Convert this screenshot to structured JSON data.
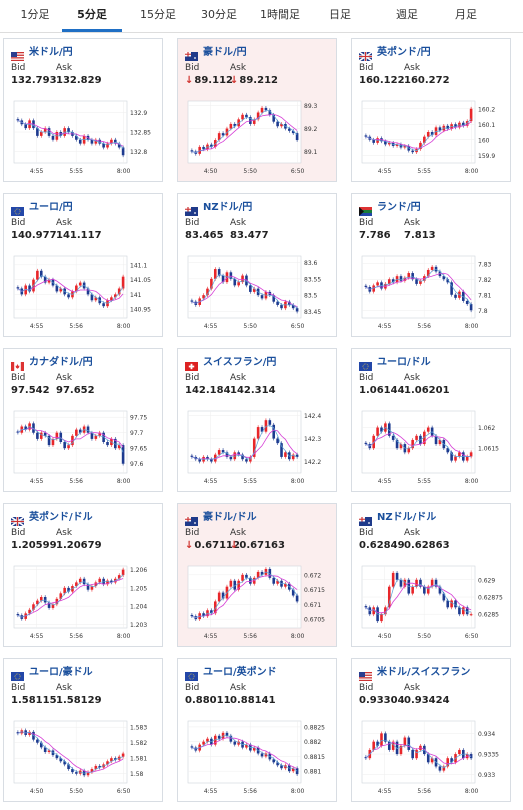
{
  "tabs": [
    {
      "label": "1分足",
      "active": false
    },
    {
      "label": "5分足",
      "active": true
    },
    {
      "label": "15分足",
      "active": false
    },
    {
      "label": "30分足",
      "active": false
    },
    {
      "label": "1時間足",
      "active": false
    },
    {
      "label": "日足",
      "active": false
    },
    {
      "label": "週足",
      "active": false
    },
    {
      "label": "月足",
      "active": false
    }
  ],
  "labels": {
    "bid": "Bid",
    "ask": "Ask"
  },
  "colors": {
    "up": "#e8262a",
    "down": "#1d3a8f",
    "ma1": "#d63fd6",
    "ma2": "#5a9fd6",
    "accent": "#1a4f9c"
  },
  "cards": [
    {
      "pair": "米ドル/円",
      "flag": "flag-us",
      "bid": "132.793",
      "ask": "132.829",
      "down": false,
      "highlight": false,
      "chart_data": {
        "type": "candlestick",
        "x_ticks": [
          "4:55",
          "5:55",
          "8:00"
        ],
        "y_ticks": [
          "132.9",
          "132.85",
          "132.8"
        ],
        "ylim": [
          132.77,
          132.93
        ],
        "closes": [
          132.88,
          132.87,
          132.86,
          132.88,
          132.86,
          132.84,
          132.85,
          132.86,
          132.84,
          132.83,
          132.85,
          132.84,
          132.86,
          132.85,
          132.84,
          132.83,
          132.82,
          132.84,
          132.83,
          132.82,
          132.83,
          132.82,
          132.81,
          132.82,
          132.83,
          132.82,
          132.81,
          132.79
        ]
      }
    },
    {
      "pair": "豪ドル/円",
      "flag": "flag-au",
      "bid": "89.112",
      "ask": "89.212",
      "down": true,
      "highlight": true,
      "chart_data": {
        "type": "candlestick",
        "x_ticks": [
          "4:50",
          "5:50",
          "6:50"
        ],
        "y_ticks": [
          "89.3",
          "89.2",
          "89.1"
        ],
        "ylim": [
          89.05,
          89.32
        ],
        "closes": [
          89.1,
          89.09,
          89.12,
          89.11,
          89.13,
          89.12,
          89.15,
          89.18,
          89.17,
          89.2,
          89.22,
          89.21,
          89.24,
          89.26,
          89.25,
          89.22,
          89.24,
          89.27,
          89.29,
          89.28,
          89.26,
          89.23,
          89.21,
          89.22,
          89.2,
          89.19,
          89.18,
          89.15
        ]
      }
    },
    {
      "pair": "英ポンド/円",
      "flag": "flag-uk",
      "bid": "160.122",
      "ask": "160.272",
      "down": false,
      "highlight": false,
      "chart_data": {
        "type": "candlestick",
        "x_ticks": [
          "4:55",
          "5:55",
          "8:00"
        ],
        "y_ticks": [
          "160.2",
          "160.1",
          "160",
          "159.9"
        ],
        "ylim": [
          159.85,
          160.25
        ],
        "closes": [
          160.02,
          160.0,
          159.98,
          160.01,
          159.99,
          159.97,
          159.98,
          159.96,
          159.97,
          159.95,
          159.96,
          159.93,
          159.92,
          159.94,
          159.98,
          160.02,
          160.05,
          160.03,
          160.08,
          160.06,
          160.09,
          160.07,
          160.1,
          160.08,
          160.11,
          160.09,
          160.12,
          160.2
        ]
      }
    },
    {
      "pair": "ユーロ/円",
      "flag": "flag-eu",
      "bid": "140.977",
      "ask": "141.117",
      "down": false,
      "highlight": false,
      "chart_data": {
        "type": "candlestick",
        "x_ticks": [
          "4:55",
          "5:56",
          "8:00"
        ],
        "y_ticks": [
          "141.1",
          "141.05",
          "141",
          "140.95"
        ],
        "ylim": [
          140.92,
          141.13
        ],
        "closes": [
          141.02,
          141.0,
          141.03,
          141.01,
          141.05,
          141.08,
          141.06,
          141.04,
          141.05,
          141.03,
          141.01,
          141.02,
          141.0,
          140.99,
          141.01,
          141.03,
          141.04,
          141.02,
          141.0,
          140.98,
          140.99,
          140.97,
          140.96,
          140.98,
          140.99,
          141.0,
          141.02,
          141.06
        ]
      }
    },
    {
      "pair": "NZドル/円",
      "flag": "flag-nz",
      "bid": "83.465",
      "ask": "83.477",
      "down": false,
      "highlight": false,
      "chart_data": {
        "type": "candlestick",
        "x_ticks": [
          "4:55",
          "5:50",
          "6:50"
        ],
        "y_ticks": [
          "83.6",
          "83.55",
          "83.5",
          "83.45"
        ],
        "ylim": [
          83.43,
          83.62
        ],
        "closes": [
          83.48,
          83.47,
          83.49,
          83.5,
          83.52,
          83.55,
          83.58,
          83.56,
          83.54,
          83.57,
          83.55,
          83.53,
          83.54,
          83.56,
          83.53,
          83.51,
          83.52,
          83.5,
          83.49,
          83.51,
          83.5,
          83.48,
          83.47,
          83.46,
          83.48,
          83.47,
          83.46,
          83.45
        ]
      }
    },
    {
      "pair": "ランド/円",
      "flag": "flag-za",
      "bid": "7.786",
      "ask": "7.813",
      "down": false,
      "highlight": false,
      "chart_data": {
        "type": "candlestick",
        "x_ticks": [
          "4:55",
          "5:56",
          "8:00"
        ],
        "y_ticks": [
          "7.83",
          "7.82",
          "7.81",
          "7.8"
        ],
        "ylim": [
          7.795,
          7.835
        ],
        "closes": [
          7.815,
          7.812,
          7.816,
          7.818,
          7.814,
          7.817,
          7.82,
          7.818,
          7.822,
          7.819,
          7.821,
          7.824,
          7.82,
          7.817,
          7.819,
          7.822,
          7.826,
          7.828,
          7.825,
          7.822,
          7.82,
          7.818,
          7.81,
          7.808,
          7.812,
          7.806,
          7.804,
          7.8
        ]
      }
    },
    {
      "pair": "カナダドル/円",
      "flag": "flag-ca",
      "bid": "97.542",
      "ask": "97.652",
      "down": false,
      "highlight": false,
      "chart_data": {
        "type": "candlestick",
        "x_ticks": [
          "4:55",
          "5:56",
          "8:00"
        ],
        "y_ticks": [
          "97.75",
          "97.7",
          "97.65",
          "97.6"
        ],
        "ylim": [
          97.57,
          97.77
        ],
        "closes": [
          97.7,
          97.72,
          97.71,
          97.73,
          97.7,
          97.68,
          97.7,
          97.69,
          97.66,
          97.68,
          97.7,
          97.67,
          97.65,
          97.66,
          97.69,
          97.71,
          97.7,
          97.72,
          97.7,
          97.68,
          97.69,
          97.7,
          97.67,
          97.66,
          97.68,
          97.65,
          97.66,
          97.6
        ]
      }
    },
    {
      "pair": "スイスフラン/円",
      "flag": "flag-ch",
      "bid": "142.184",
      "ask": "142.314",
      "down": false,
      "highlight": false,
      "chart_data": {
        "type": "candlestick",
        "x_ticks": [
          "4:55",
          "5:55",
          "8:00"
        ],
        "y_ticks": [
          "142.4",
          "142.3",
          "142.2"
        ],
        "ylim": [
          142.15,
          142.42
        ],
        "closes": [
          142.22,
          142.21,
          142.2,
          142.22,
          142.21,
          142.2,
          142.23,
          142.25,
          142.24,
          142.22,
          142.21,
          142.24,
          142.23,
          142.21,
          142.2,
          142.22,
          142.3,
          142.35,
          142.33,
          142.38,
          142.36,
          142.3,
          142.28,
          142.22,
          142.24,
          142.21,
          142.23,
          142.22
        ]
      }
    },
    {
      "pair": "ユーロ/ドル",
      "flag": "flag-eu",
      "bid": "1.06144",
      "ask": "1.06201",
      "down": false,
      "highlight": false,
      "chart_data": {
        "type": "candlestick",
        "x_ticks": [
          "4:55",
          "5:55",
          "8:00"
        ],
        "y_ticks": [
          "1.062",
          "1.0615"
        ],
        "ylim": [
          1.0609,
          1.0624
        ],
        "closes": [
          1.0616,
          1.0615,
          1.0618,
          1.062,
          1.0619,
          1.0621,
          1.0618,
          1.0617,
          1.0615,
          1.0616,
          1.0614,
          1.0615,
          1.0617,
          1.0618,
          1.0616,
          1.0619,
          1.062,
          1.0618,
          1.0616,
          1.0617,
          1.0615,
          1.0614,
          1.0612,
          1.0613,
          1.0614,
          1.0612,
          1.0613,
          1.0614
        ]
      }
    },
    {
      "pair": "英ポンド/ドル",
      "flag": "flag-uk",
      "bid": "1.20599",
      "ask": "1.20679",
      "down": false,
      "highlight": false,
      "chart_data": {
        "type": "candlestick",
        "x_ticks": [
          "4:55",
          "5:56",
          "8:00"
        ],
        "y_ticks": [
          "1.206",
          "1.205",
          "1.204",
          "1.203"
        ],
        "ylim": [
          1.2028,
          1.2062
        ],
        "closes": [
          1.2035,
          1.2033,
          1.2036,
          1.2038,
          1.2041,
          1.2043,
          1.2045,
          1.2042,
          1.2039,
          1.2041,
          1.2044,
          1.2047,
          1.205,
          1.2048,
          1.2051,
          1.2053,
          1.2055,
          1.2052,
          1.2049,
          1.2051,
          1.2053,
          1.2055,
          1.2052,
          1.2054,
          1.2053,
          1.2055,
          1.2057,
          1.206
        ]
      }
    },
    {
      "pair": "豪ドル/ドル",
      "flag": "flag-au",
      "bid": "0.67112",
      "ask": "0.67163",
      "down": true,
      "highlight": true,
      "chart_data": {
        "type": "candlestick",
        "x_ticks": [
          "4:55",
          "5:56",
          "8:00"
        ],
        "y_ticks": [
          "0.672",
          "0.6715",
          "0.671",
          "0.6705"
        ],
        "ylim": [
          0.6702,
          0.6723
        ],
        "closes": [
          0.6706,
          0.6705,
          0.6707,
          0.6706,
          0.6708,
          0.6707,
          0.6711,
          0.6714,
          0.6712,
          0.6716,
          0.6718,
          0.6715,
          0.6718,
          0.672,
          0.6719,
          0.6717,
          0.6719,
          0.6721,
          0.672,
          0.6722,
          0.6719,
          0.6717,
          0.6718,
          0.6716,
          0.6717,
          0.6715,
          0.6713,
          0.6711
        ]
      }
    },
    {
      "pair": "NZドル/ドル",
      "flag": "flag-nz",
      "bid": "0.62849",
      "ask": "0.62863",
      "down": false,
      "highlight": false,
      "chart_data": {
        "type": "candlestick",
        "x_ticks": [
          "4:50",
          "5:50",
          "6:50"
        ],
        "y_ticks": [
          "0.629",
          "0.62875",
          "0.6285"
        ],
        "ylim": [
          0.6283,
          0.6292
        ],
        "closes": [
          0.6286,
          0.6285,
          0.6286,
          0.6284,
          0.6285,
          0.6286,
          0.6289,
          0.6291,
          0.629,
          0.6289,
          0.629,
          0.6288,
          0.6289,
          0.629,
          0.6289,
          0.6288,
          0.6289,
          0.629,
          0.6289,
          0.6288,
          0.6287,
          0.6286,
          0.6287,
          0.6286,
          0.6285,
          0.6286,
          0.6285,
          0.6285
        ]
      }
    },
    {
      "pair": "ユーロ/豪ドル",
      "flag": "flag-eu",
      "bid": "1.58115",
      "ask": "1.58129",
      "down": false,
      "highlight": false,
      "chart_data": {
        "type": "candlestick",
        "x_ticks": [
          "4:50",
          "5:50",
          "6:50"
        ],
        "y_ticks": [
          "1.583",
          "1.582",
          "1.581",
          "1.58"
        ],
        "ylim": [
          1.5794,
          1.5834
        ],
        "closes": [
          1.5826,
          1.5828,
          1.5825,
          1.5827,
          1.5822,
          1.582,
          1.5817,
          1.5814,
          1.5815,
          1.5812,
          1.581,
          1.5808,
          1.5806,
          1.5803,
          1.5801,
          1.58,
          1.5802,
          1.5799,
          1.5801,
          1.5803,
          1.5805,
          1.5804,
          1.5806,
          1.5808,
          1.581,
          1.5809,
          1.5811,
          1.5813
        ]
      }
    },
    {
      "pair": "ユーロ/英ポンド",
      "flag": "flag-eu",
      "bid": "0.88011",
      "ask": "0.88141",
      "down": false,
      "highlight": false,
      "chart_data": {
        "type": "candlestick",
        "x_ticks": [
          "4:55",
          "5:56",
          "8:00"
        ],
        "y_ticks": [
          "0.8825",
          "0.882",
          "0.8815",
          "0.881"
        ],
        "ylim": [
          0.8806,
          0.8827
        ],
        "closes": [
          0.8818,
          0.8817,
          0.8819,
          0.882,
          0.8821,
          0.8819,
          0.8822,
          0.8821,
          0.8823,
          0.8822,
          0.882,
          0.8819,
          0.882,
          0.8818,
          0.8819,
          0.8817,
          0.8818,
          0.8816,
          0.8815,
          0.8816,
          0.8814,
          0.8813,
          0.8812,
          0.8811,
          0.8812,
          0.881,
          0.8811,
          0.8809
        ]
      }
    },
    {
      "pair": "米ドル/スイスフラン",
      "flag": "flag-us",
      "bid": "0.93304",
      "ask": "0.93424",
      "down": false,
      "highlight": false,
      "chart_data": {
        "type": "candlestick",
        "x_ticks": [
          "4:55",
          "5:56",
          "8:00"
        ],
        "y_ticks": [
          "0.934",
          "0.9335",
          "0.933"
        ],
        "ylim": [
          0.9328,
          0.9343
        ],
        "closes": [
          0.9334,
          0.9336,
          0.9338,
          0.9337,
          0.934,
          0.9338,
          0.9336,
          0.9338,
          0.9335,
          0.9337,
          0.9339,
          0.9336,
          0.9334,
          0.9336,
          0.9337,
          0.9335,
          0.9333,
          0.9334,
          0.9332,
          0.9331,
          0.9332,
          0.9334,
          0.9333,
          0.9335,
          0.9336,
          0.9334,
          0.9335,
          0.9334
        ]
      }
    }
  ]
}
